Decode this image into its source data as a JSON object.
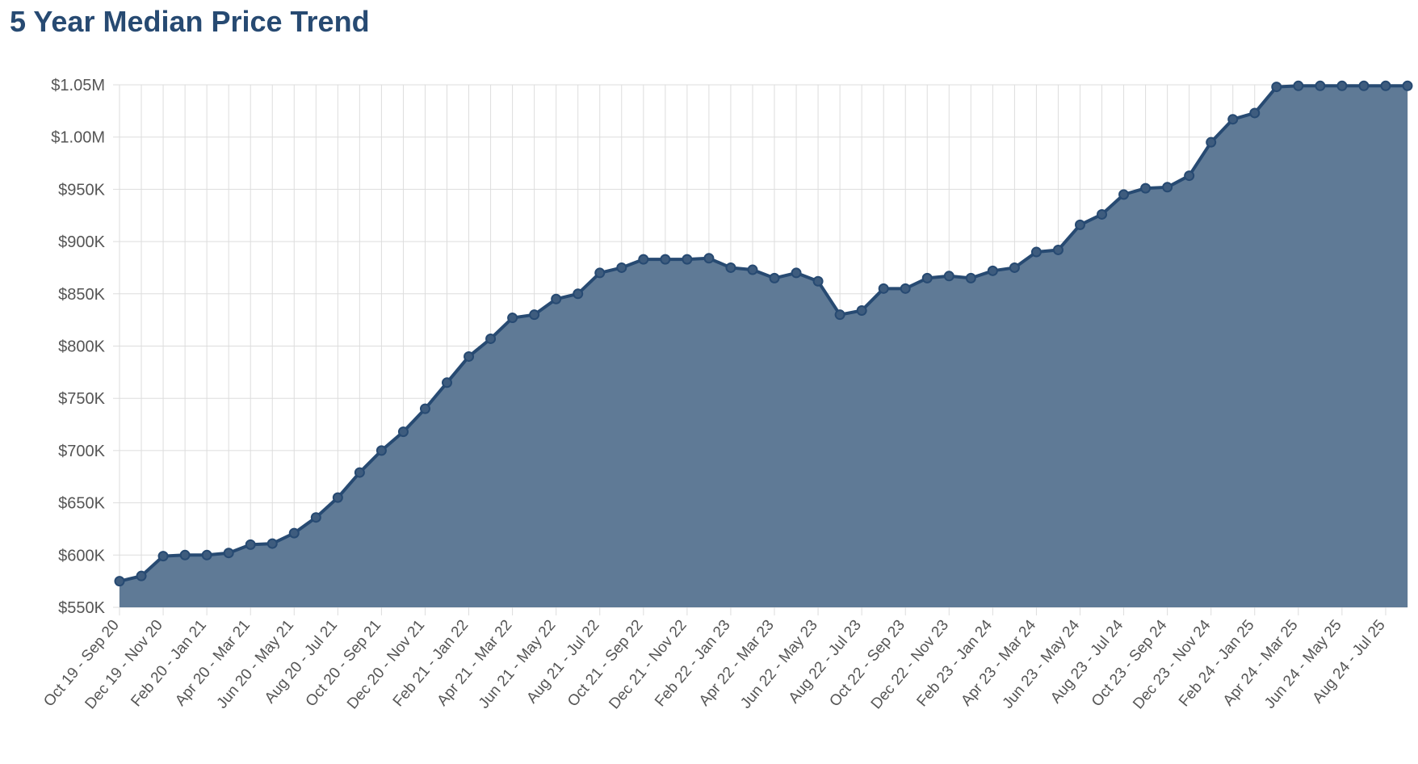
{
  "chart_data": {
    "type": "area",
    "title": "5 Year Median Price Trend",
    "xlabel": "",
    "ylabel": "",
    "grid": true,
    "ylim": [
      550000,
      1050000
    ],
    "y_tick_values": [
      550000,
      600000,
      650000,
      700000,
      750000,
      800000,
      850000,
      900000,
      950000,
      1000000,
      1050000
    ],
    "y_tick_labels": [
      "$550K",
      "$600K",
      "$650K",
      "$700K",
      "$750K",
      "$800K",
      "$850K",
      "$900K",
      "$950K",
      "$1.00M",
      "$1.05M"
    ],
    "x_tick_labels": [
      "Oct 19 - Sep 20",
      "Dec 19 - Nov 20",
      "Feb 20 - Jan 21",
      "Apr 20 - Mar 21",
      "Jun 20 - May 21",
      "Aug 20 - Jul 21",
      "Oct 20 - Sep 21",
      "Dec 20 - Nov 21",
      "Feb 21 - Jan 22",
      "Apr 21 - Mar 22",
      "Jun 21 - May 22",
      "Aug 21 - Jul 22",
      "Oct 21 - Sep 22",
      "Dec 21 - Nov 22",
      "Feb 22 - Jan 23",
      "Apr 22 - Mar 23",
      "Jun 22 - May 23",
      "Aug 22 - Jul 23",
      "Oct 22 - Sep 23",
      "Dec 22 - Nov 23",
      "Feb 23 - Jan 24",
      "Apr 23 - Mar 24",
      "Jun 23 - May 24",
      "Aug 23 - Jul 24",
      "Oct 23 - Sep 24",
      "Dec 23 - Nov 24",
      "Feb 24 - Jan 25",
      "Apr 24 - Mar 25",
      "Jun 24 - May 25",
      "Aug 24 - Jul 25"
    ],
    "series": [
      {
        "values": [
          575000,
          580000,
          599000,
          600000,
          600000,
          602000,
          610000,
          611000,
          621000,
          636000,
          655000,
          679000,
          700000,
          718000,
          740000,
          765000,
          790000,
          807000,
          827000,
          830000,
          845000,
          850000,
          870000,
          875000,
          883000,
          883000,
          883000,
          884000,
          875000,
          873000,
          865000,
          870000,
          862000,
          830000,
          834000,
          855000,
          855000,
          865000,
          867000,
          865000,
          872000,
          875000,
          890000,
          892000,
          916000,
          926000,
          945000,
          951000,
          952000,
          963000,
          995000,
          1017000,
          1023000,
          1048000,
          1049000,
          1049000,
          1049000,
          1049000,
          1049000,
          1049000
        ]
      }
    ],
    "colors": {
      "line": "#274a72",
      "area": "#5f7a96",
      "grid": "#dddddd",
      "title": "#274a72",
      "tick_text": "#555555"
    }
  }
}
